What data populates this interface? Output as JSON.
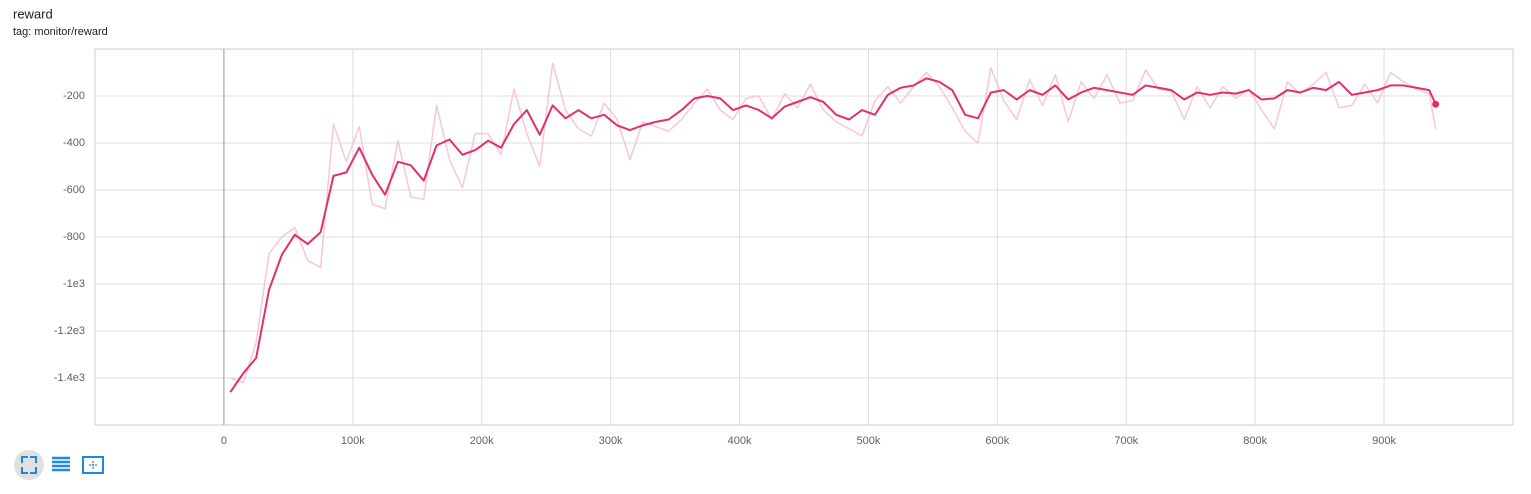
{
  "chart_data": {
    "type": "line",
    "title": "reward",
    "subtitle": "tag: monitor/reward",
    "x": [
      5000,
      15000,
      25000,
      35000,
      45000,
      55000,
      65000,
      75000,
      85000,
      95000,
      105000,
      115000,
      125000,
      135000,
      145000,
      155000,
      165000,
      175000,
      185000,
      195000,
      205000,
      215000,
      225000,
      235000,
      245000,
      255000,
      265000,
      275000,
      285000,
      295000,
      305000,
      315000,
      325000,
      335000,
      345000,
      355000,
      365000,
      375000,
      385000,
      395000,
      405000,
      415000,
      425000,
      435000,
      445000,
      455000,
      465000,
      475000,
      485000,
      495000,
      505000,
      515000,
      525000,
      535000,
      545000,
      555000,
      565000,
      575000,
      585000,
      595000,
      605000,
      615000,
      625000,
      635000,
      645000,
      655000,
      665000,
      675000,
      685000,
      695000,
      705000,
      715000,
      725000,
      735000,
      745000,
      755000,
      765000,
      775000,
      785000,
      795000,
      805000,
      815000,
      825000,
      835000,
      845000,
      855000,
      865000,
      875000,
      885000,
      895000,
      905000,
      915000,
      925000,
      935000,
      940000
    ],
    "series": [
      {
        "color": "#f8c6d8",
        "values": [
          -1400,
          -1420,
          -1250,
          -870,
          -800,
          -760,
          -900,
          -930,
          -320,
          -480,
          -330,
          -660,
          -680,
          -390,
          -630,
          -640,
          -240,
          -470,
          -590,
          -360,
          -360,
          -450,
          -170,
          -360,
          -500,
          -60,
          -260,
          -340,
          -370,
          -230,
          -300,
          -470,
          -310,
          -330,
          -350,
          -300,
          -230,
          -170,
          -260,
          -300,
          -210,
          -200,
          -300,
          -190,
          -250,
          -150,
          -260,
          -310,
          -340,
          -370,
          -220,
          -160,
          -230,
          -160,
          -100,
          -160,
          -250,
          -350,
          -400,
          -80,
          -220,
          -300,
          -130,
          -240,
          -110,
          -310,
          -140,
          -210,
          -110,
          -230,
          -220,
          -90,
          -170,
          -180,
          -300,
          -160,
          -250,
          -160,
          -210,
          -170,
          -260,
          -340,
          -140,
          -190,
          -150,
          -100,
          -250,
          -240,
          -150,
          -230,
          -100,
          -140,
          -170,
          -190,
          -340
        ]
      },
      {
        "color": "#e0306e",
        "values": [
          -1460,
          -1380,
          -1315,
          -1025,
          -875,
          -790,
          -830,
          -780,
          -540,
          -525,
          -420,
          -535,
          -620,
          -480,
          -495,
          -560,
          -410,
          -385,
          -450,
          -430,
          -390,
          -420,
          -320,
          -260,
          -365,
          -240,
          -295,
          -260,
          -295,
          -280,
          -325,
          -345,
          -325,
          -310,
          -300,
          -260,
          -210,
          -200,
          -210,
          -260,
          -240,
          -260,
          -295,
          -245,
          -225,
          -205,
          -225,
          -280,
          -300,
          -260,
          -280,
          -195,
          -165,
          -155,
          -125,
          -140,
          -175,
          -280,
          -295,
          -185,
          -175,
          -215,
          -175,
          -195,
          -155,
          -215,
          -185,
          -165,
          -175,
          -185,
          -195,
          -155,
          -165,
          -175,
          -215,
          -185,
          -195,
          -185,
          -190,
          -175,
          -215,
          -210,
          -175,
          -185,
          -165,
          -175,
          -140,
          -195,
          -185,
          -175,
          -155,
          -155,
          -165,
          -175,
          -235
        ]
      }
    ],
    "xlim": [
      -100000,
      1000000
    ],
    "xticks": [
      0,
      {
        "value": 100000,
        "label": "100k"
      },
      {
        "value": 200000,
        "label": "200k"
      },
      {
        "value": 300000,
        "label": "300k"
      },
      {
        "value": 400000,
        "label": "400k"
      },
      {
        "value": 500000,
        "label": "500k"
      },
      {
        "value": 600000,
        "label": "600k"
      },
      {
        "value": 700000,
        "label": "700k"
      },
      {
        "value": 800000,
        "label": "800k"
      },
      {
        "value": 900000,
        "label": "900k"
      }
    ],
    "ylim": [
      -1600,
      0
    ],
    "yticks": [
      {
        "value": -1400,
        "label": "-1.4e3"
      },
      {
        "value": -1200,
        "label": "-1.2e3"
      },
      {
        "value": -1000,
        "label": "-1e3"
      },
      -800,
      -600,
      -400,
      -200
    ],
    "grid": true
  }
}
